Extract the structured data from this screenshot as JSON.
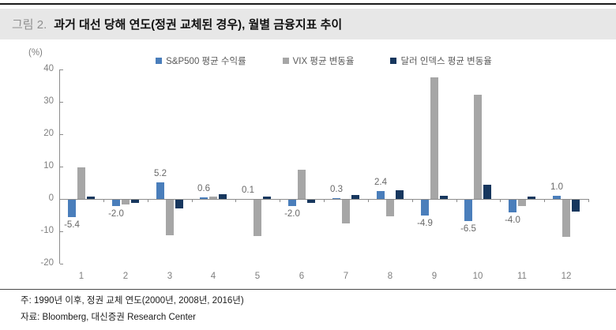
{
  "title": {
    "prefix": "그림 2.",
    "text": "과거 대선 당해 연도(정권 교체된 경우), 월별 금융지표 추이"
  },
  "chart_data": {
    "type": "bar",
    "unit_label": "(%)",
    "categories": [
      "1",
      "2",
      "3",
      "4",
      "5",
      "6",
      "7",
      "8",
      "9",
      "10",
      "11",
      "12"
    ],
    "series": [
      {
        "name": "S&P500 평균 수익률",
        "color": "#4a7ebb",
        "values": [
          -5.4,
          -2.0,
          5.2,
          0.6,
          0.1,
          -2.0,
          0.3,
          2.4,
          -4.9,
          -6.5,
          -4.0,
          1.0
        ]
      },
      {
        "name": "VIX 평균 변동율",
        "color": "#a6a6a6",
        "values": [
          9.7,
          -1.4,
          -11.0,
          0.8,
          -11.1,
          9.0,
          -7.3,
          -5.0,
          37.5,
          32.3,
          -2.0,
          -11.5
        ]
      },
      {
        "name": "달러 인덱스 평균 변동율",
        "color": "#17375e",
        "values": [
          0.8,
          -1.0,
          -2.6,
          1.4,
          0.7,
          -0.9,
          1.3,
          2.8,
          0.9,
          4.5,
          0.8,
          -3.6
        ]
      }
    ],
    "data_labels": [
      "-5.4",
      "-2.0",
      "5.2",
      "0.6",
      "0.1",
      "-2.0",
      "0.3",
      "2.4",
      "-4.9",
      "-6.5",
      "-4.0",
      "1.0"
    ],
    "ylim": [
      -20,
      40
    ],
    "yticks": [
      40,
      30,
      20,
      10,
      0,
      -10,
      -20
    ],
    "legend_position": "top",
    "grid": false
  },
  "footer": {
    "note": "주: 1990년 이후, 정권 교체 연도(2000년, 2008년, 2016년)",
    "source": "자료: Bloomberg, 대신증권 Research Center"
  }
}
